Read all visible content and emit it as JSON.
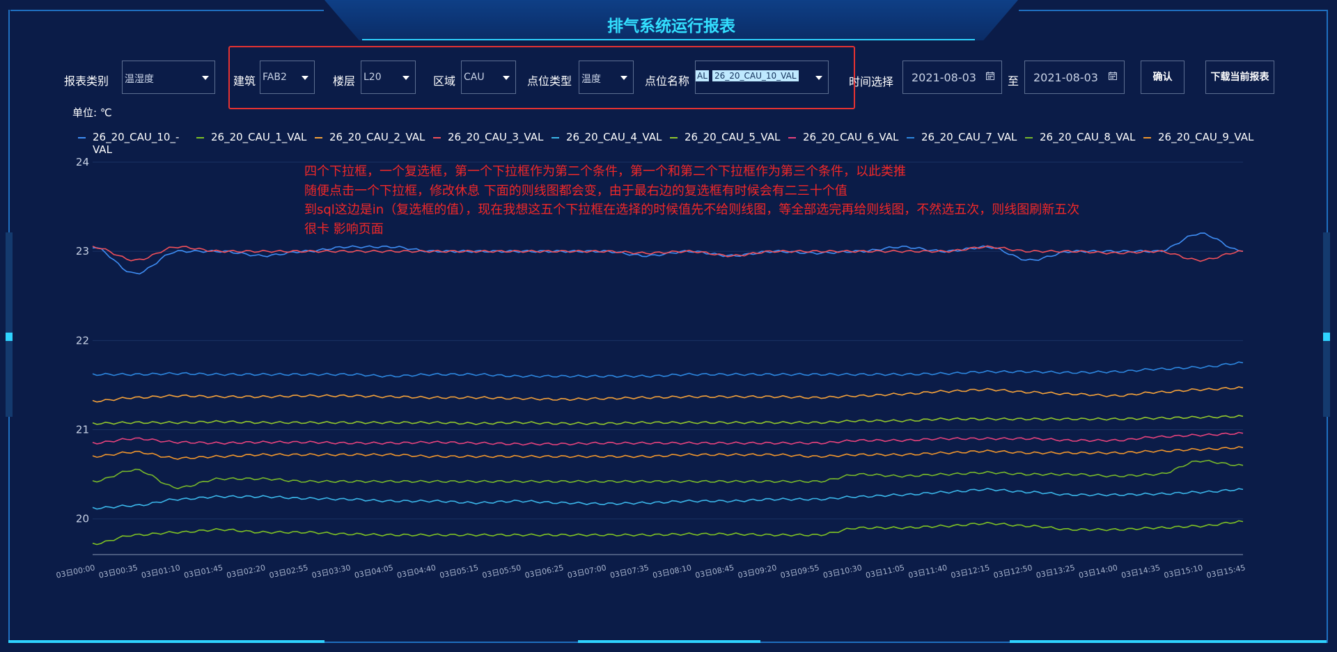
{
  "header": {
    "title": "排气系统运行报表"
  },
  "filters": {
    "report_type": {
      "label": "报表类别",
      "value": "温湿度"
    },
    "building": {
      "label": "建筑",
      "value": "FAB2"
    },
    "floor": {
      "label": "楼层",
      "value": "L20"
    },
    "area": {
      "label": "区域",
      "value": "CAU"
    },
    "point_type": {
      "label": "点位类型",
      "value": "温度"
    },
    "point_name": {
      "label": "点位名称",
      "tag_prefix": "AL",
      "tag": "26_20_CAU_10_VAL"
    },
    "time": {
      "label": "时间选择",
      "start": "2021-08-03",
      "separator": "至",
      "end": "2021-08-03"
    },
    "confirm_label": "确认",
    "download_label": "下载当前报表"
  },
  "unit_label": "单位: ℃",
  "annotation": [
    "四个下拉框，一个复选框，第一个下拉框作为第二个条件，第一个和第二个下拉框作为第三个条件，以此类推",
    "随便点击一个下拉框，修改休息 下面的则线图都会变，由于最右边的复选框有时候会有二三十个值",
    "到sql这边是in（复选框的值），现在我想这五个下拉框在选择的时候值先不给则线图，等全部选完再给则线图，不然选五次，则线图刷新五次",
    "很卡 影响页面"
  ],
  "colors": {
    "accent": "#33e0ff",
    "highlight": "#e53232",
    "annotation": "#f22828"
  },
  "chart_data": {
    "type": "line",
    "yticks": [
      20,
      21,
      22,
      23,
      24
    ],
    "ylim": [
      19.6,
      24
    ],
    "x": [
      "03日00:00",
      "03日00:35",
      "03日01:10",
      "03日01:45",
      "03日02:20",
      "03日02:55",
      "03日03:30",
      "03日04:05",
      "03日04:40",
      "03日05:15",
      "03日05:50",
      "03日06:25",
      "03日07:00",
      "03日07:35",
      "03日08:10",
      "03日08:45",
      "03日09:20",
      "03日09:55",
      "03日10:30",
      "03日11:05",
      "03日11:40",
      "03日12:15",
      "03日12:50",
      "03日13:25",
      "03日14:00",
      "03日14:35",
      "03日15:10",
      "03日15:45"
    ],
    "series": [
      {
        "name": "26_20_CAU_10_-VAL",
        "color": "#3f8ef5",
        "values": [
          23.05,
          22.75,
          23.0,
          23.0,
          22.95,
          23.0,
          23.05,
          23.05,
          23.0,
          23.0,
          23.0,
          23.0,
          23.0,
          22.95,
          23.0,
          22.95,
          23.0,
          22.98,
          23.0,
          23.05,
          23.0,
          23.05,
          22.9,
          23.0,
          23.0,
          23.0,
          23.2,
          23.0
        ]
      },
      {
        "name": "26_20_CAU_1_VAL",
        "color": "#7fc224",
        "values": [
          19.72,
          19.82,
          19.85,
          19.88,
          19.85,
          19.85,
          19.83,
          19.82,
          19.82,
          19.82,
          19.82,
          19.82,
          19.82,
          19.82,
          19.83,
          19.83,
          19.82,
          19.82,
          19.9,
          19.9,
          19.92,
          19.95,
          19.92,
          19.88,
          19.88,
          19.9,
          19.92,
          19.97
        ]
      },
      {
        "name": "26_20_CAU_2_VAL",
        "color": "#f5a23a",
        "values": [
          21.32,
          21.36,
          21.38,
          21.37,
          21.37,
          21.38,
          21.38,
          21.37,
          21.36,
          21.36,
          21.35,
          21.34,
          21.35,
          21.36,
          21.37,
          21.37,
          21.37,
          21.36,
          21.38,
          21.4,
          21.43,
          21.45,
          21.42,
          21.4,
          21.38,
          21.42,
          21.45,
          21.47
        ]
      },
      {
        "name": "26_20_CAU_3_VAL",
        "color": "#f2505a",
        "values": [
          23.05,
          22.9,
          23.05,
          23.0,
          23.0,
          23.0,
          23.0,
          23.0,
          23.0,
          23.0,
          23.0,
          23.0,
          23.0,
          22.98,
          23.0,
          22.95,
          23.0,
          23.0,
          23.0,
          23.0,
          23.0,
          23.05,
          23.0,
          23.0,
          22.98,
          23.0,
          22.9,
          23.0
        ]
      },
      {
        "name": "26_20_CAU_4_VAL",
        "color": "#3bb7ea",
        "values": [
          20.12,
          20.15,
          20.22,
          20.25,
          20.25,
          20.23,
          20.22,
          20.2,
          20.2,
          20.18,
          20.2,
          20.18,
          20.17,
          20.18,
          20.2,
          20.2,
          20.22,
          20.22,
          20.25,
          20.27,
          20.3,
          20.33,
          20.3,
          20.27,
          20.27,
          20.28,
          20.3,
          20.33
        ]
      },
      {
        "name": "26_20_CAU_5_VAL",
        "color": "#93c82c",
        "values": [
          21.07,
          21.08,
          21.08,
          21.09,
          21.08,
          21.08,
          21.08,
          21.08,
          21.08,
          21.07,
          21.08,
          21.07,
          21.07,
          21.08,
          21.08,
          21.08,
          21.08,
          21.08,
          21.1,
          21.1,
          21.12,
          21.12,
          21.12,
          21.12,
          21.12,
          21.13,
          21.14,
          21.15
        ]
      },
      {
        "name": "26_20_CAU_6_VAL",
        "color": "#e6427c",
        "values": [
          20.85,
          20.9,
          20.86,
          20.85,
          20.86,
          20.86,
          20.85,
          20.85,
          20.86,
          20.85,
          20.84,
          20.84,
          20.85,
          20.85,
          20.85,
          20.85,
          20.85,
          20.85,
          20.88,
          20.88,
          20.9,
          20.9,
          20.9,
          20.88,
          20.88,
          20.92,
          20.94,
          20.96
        ]
      },
      {
        "name": "26_20_CAU_7_VAL",
        "color": "#2d87e0",
        "values": [
          21.62,
          21.62,
          21.63,
          21.62,
          21.62,
          21.62,
          21.62,
          21.6,
          21.62,
          21.62,
          21.6,
          21.6,
          21.6,
          21.6,
          21.62,
          21.62,
          21.62,
          21.62,
          21.62,
          21.62,
          21.63,
          21.65,
          21.65,
          21.64,
          21.65,
          21.68,
          21.7,
          21.75
        ]
      },
      {
        "name": "26_20_CAU_8_VAL",
        "color": "#78b82a",
        "values": [
          20.42,
          20.55,
          20.35,
          20.45,
          20.45,
          20.42,
          20.42,
          20.42,
          20.42,
          20.42,
          20.42,
          20.42,
          20.42,
          20.42,
          20.42,
          20.42,
          20.42,
          20.42,
          20.5,
          20.48,
          20.5,
          20.52,
          20.5,
          20.5,
          20.48,
          20.5,
          20.65,
          20.6
        ]
      },
      {
        "name": "26_20_CAU_9_VAL",
        "color": "#f0962d",
        "values": [
          20.7,
          20.75,
          20.68,
          20.7,
          20.72,
          20.72,
          20.72,
          20.72,
          20.7,
          20.7,
          20.7,
          20.7,
          20.7,
          20.7,
          20.72,
          20.72,
          20.72,
          20.7,
          20.72,
          20.72,
          20.74,
          20.76,
          20.74,
          20.74,
          20.74,
          20.76,
          20.78,
          20.8
        ]
      }
    ]
  }
}
